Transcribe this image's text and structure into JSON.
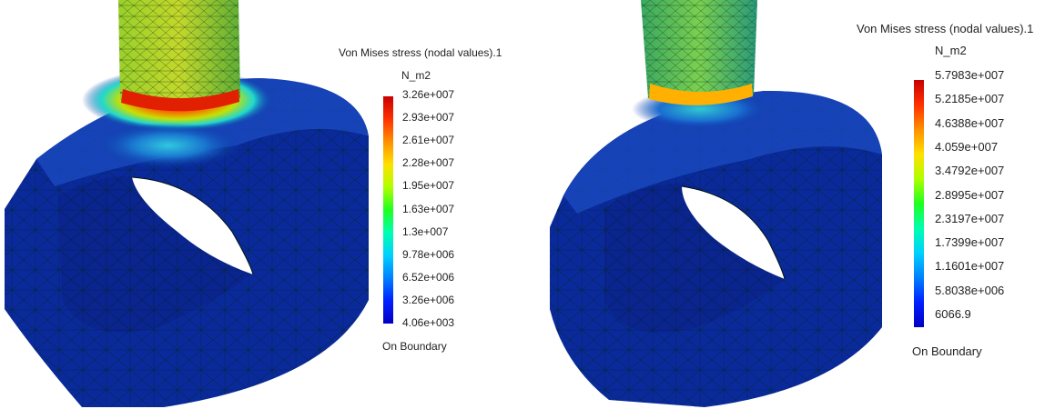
{
  "left_plot": {
    "legend": {
      "title": "Von Mises stress (nodal values).1",
      "unit": "N_m2",
      "values": [
        "3.26e+007",
        "2.93e+007",
        "2.61e+007",
        "2.28e+007",
        "1.95e+007",
        "1.63e+007",
        "1.3e+007",
        "9.78e+006",
        "6.52e+006",
        "3.26e+006",
        "4.06e+003"
      ],
      "footer": "On Boundary"
    }
  },
  "right_plot": {
    "legend": {
      "title": "Von Mises stress (nodal values).1",
      "unit": "N_m2",
      "values": [
        "5.7983e+007",
        "5.2185e+007",
        "4.6388e+007",
        "4.059e+007",
        "3.4792e+007",
        "2.8995e+007",
        "2.3197e+007",
        "1.7399e+007",
        "1.1601e+007",
        "5.8038e+006",
        "6066.9"
      ],
      "footer": "On Boundary"
    }
  },
  "colormap": [
    "#c80000",
    "#ff3000",
    "#ff9000",
    "#ffe000",
    "#b0ff00",
    "#20ff20",
    "#00ffb0",
    "#00d0ff",
    "#0080ff",
    "#0020ff",
    "#0000c0"
  ]
}
